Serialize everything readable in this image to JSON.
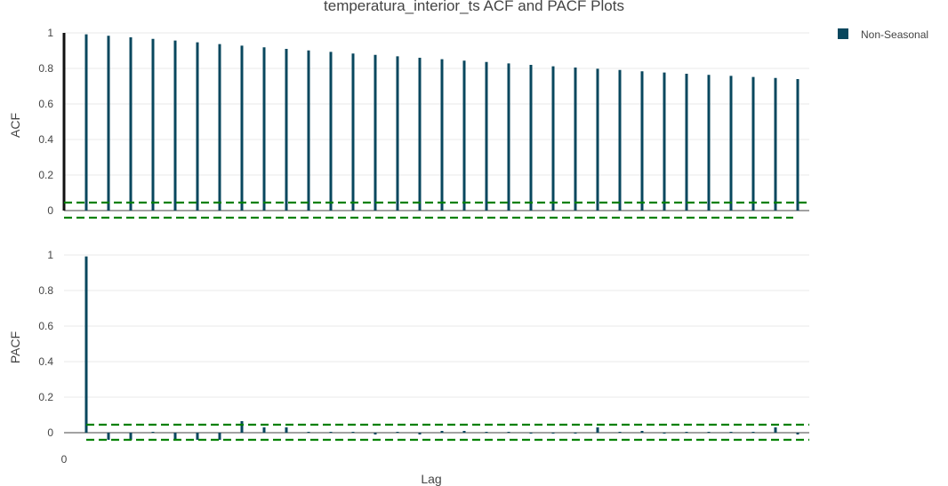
{
  "chart_data": {
    "type": "bar",
    "title": "temperatura_interior_ts ACF and PACF Plots",
    "xlabel": "Lag",
    "x_tick_labels": [
      "0"
    ],
    "legend": {
      "position": "top-right",
      "entries": [
        {
          "name": "Non-Seasonal",
          "color": "#08475e"
        }
      ]
    },
    "colors": {
      "stem": "#08475e",
      "lag0": "#111111",
      "confidence": "#008000",
      "grid": "#e8e8e8",
      "axis": "#444444"
    },
    "grid": true,
    "lags": [
      0,
      1,
      2,
      3,
      4,
      5,
      6,
      7,
      8,
      9,
      10,
      11,
      12,
      13,
      14,
      15,
      16,
      17,
      18,
      19,
      20,
      21,
      22,
      23,
      24,
      25,
      26,
      27,
      28,
      29,
      30,
      31,
      32,
      33
    ],
    "panels": [
      {
        "id": "acf",
        "ylabel": "ACF",
        "ylim": [
          -0.04,
          1.0
        ],
        "yticks": [
          0,
          0.2,
          0.4,
          0.6,
          0.8,
          1
        ],
        "ytick_labels": [
          "0",
          "0.2",
          "0.4",
          "0.6",
          "0.8",
          "1"
        ],
        "confidence_upper": 0.045,
        "confidence_lower": -0.04,
        "series": [
          {
            "name": "Non-Seasonal",
            "values": [
              1.0,
              0.992,
              0.984,
              0.975,
              0.966,
              0.957,
              0.947,
              0.937,
              0.928,
              0.919,
              0.91,
              0.901,
              0.893,
              0.884,
              0.876,
              0.868,
              0.86,
              0.852,
              0.844,
              0.836,
              0.828,
              0.82,
              0.812,
              0.805,
              0.798,
              0.791,
              0.784,
              0.777,
              0.77,
              0.764,
              0.758,
              0.752,
              0.746,
              0.74
            ]
          }
        ]
      },
      {
        "id": "pacf",
        "ylabel": "PACF",
        "ylim": [
          -0.04,
          1.0
        ],
        "yticks": [
          0,
          0.2,
          0.4,
          0.6,
          0.8,
          1
        ],
        "ytick_labels": [
          "0",
          "0.2",
          "0.4",
          "0.6",
          "0.8",
          "1"
        ],
        "confidence_upper": 0.045,
        "confidence_lower": -0.04,
        "series": [
          {
            "name": "Non-Seasonal",
            "values": [
              null,
              0.992,
              -0.04,
              -0.04,
              0.005,
              -0.04,
              -0.04,
              -0.04,
              0.065,
              0.03,
              0.03,
              0.005,
              0.005,
              0.005,
              -0.01,
              0.005,
              -0.01,
              0.01,
              0.01,
              0.005,
              0.005,
              -0.005,
              -0.005,
              -0.005,
              0.03,
              0.005,
              0.01,
              -0.005,
              0.005,
              0.005,
              0.005,
              0.005,
              0.03,
              -0.01
            ]
          }
        ]
      }
    ]
  }
}
